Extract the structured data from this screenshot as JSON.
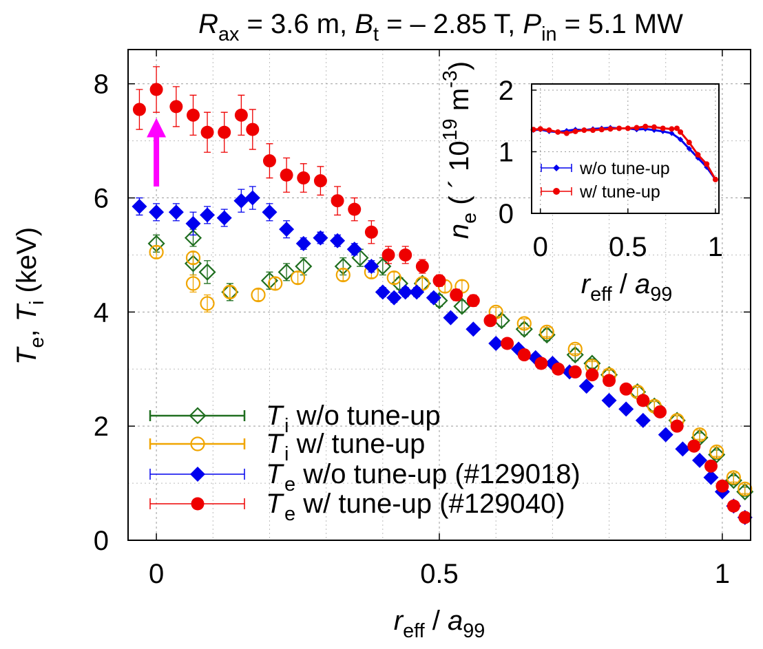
{
  "title": {
    "parts": [
      {
        "text": "R",
        "style": "italic"
      },
      {
        "text": "ax",
        "style": "sub"
      },
      {
        "text": " = 3.6 m, "
      },
      {
        "text": "B",
        "style": "italic"
      },
      {
        "text": "t",
        "style": "sub"
      },
      {
        "text": " = – 2.85 T, "
      },
      {
        "text": "P",
        "style": "italic"
      },
      {
        "text": "in",
        "style": "sub"
      },
      {
        "text": " = 5.1 MW"
      }
    ]
  },
  "main_xlabel": {
    "parts": [
      {
        "text": "r",
        "style": "italic"
      },
      {
        "text": "eff",
        "style": "sub"
      },
      {
        "text": " / "
      },
      {
        "text": "a",
        "style": "italic"
      },
      {
        "text": "99",
        "style": "sub"
      }
    ]
  },
  "main_ylabel": {
    "parts": [
      {
        "text": "T",
        "style": "italic"
      },
      {
        "text": "e",
        "style": "sub"
      },
      {
        "text": ", "
      },
      {
        "text": "T",
        "style": "italic"
      },
      {
        "text": "i",
        "style": "sub"
      },
      {
        "text": " (keV)"
      }
    ]
  },
  "inset_xlabel": {
    "parts": [
      {
        "text": "r",
        "style": "italic"
      },
      {
        "text": "eff",
        "style": "sub"
      },
      {
        "text": " / "
      },
      {
        "text": "a",
        "style": "italic"
      },
      {
        "text": "99",
        "style": "sub"
      }
    ]
  },
  "inset_ylabel": {
    "parts": [
      {
        "text": "n",
        "style": "italic"
      },
      {
        "text": "e",
        "style": "sub"
      },
      {
        "text": "  ( ´ 10"
      },
      {
        "text": "19",
        "style": "sup"
      },
      {
        "text": " m"
      },
      {
        "text": "-3",
        "style": "sup"
      },
      {
        "text": ")"
      }
    ]
  },
  "colors": {
    "ti_wo": "#1f6e1f",
    "ti_w": "#f0a500",
    "te_wo": "#0000ee",
    "te_w": "#ee0000",
    "arrow": "#ff00ff"
  },
  "chart_data": [
    {
      "type": "scatter",
      "xlabel": "r_eff / a_99",
      "ylabel": "T_e, T_i (keV)",
      "xlim": [
        -0.05,
        1.05
      ],
      "ylim": [
        0,
        8.6
      ],
      "xticks": [
        0,
        0.5,
        1
      ],
      "xtick_labels": [
        "0",
        "0.5",
        "1"
      ],
      "yticks": [
        0,
        2,
        4,
        6,
        8
      ],
      "ytick_labels": [
        "0",
        "2",
        "4",
        "6",
        "8"
      ],
      "grid": true,
      "legend_position": "bottom-left",
      "annotation": {
        "type": "arrow",
        "color": "magenta",
        "x": 0,
        "from_y": 6.2,
        "to_y": 7.4
      },
      "series": [
        {
          "name": "T_i w/o tune-up",
          "legend": "i w/o tune-up",
          "marker": "diamond-open",
          "color_key": "ti_wo",
          "x": [
            0.0,
            0.065,
            0.065,
            0.09,
            0.13,
            0.2,
            0.23,
            0.26,
            0.33,
            0.36,
            0.4,
            0.43,
            0.47,
            0.5,
            0.54,
            0.61,
            0.65,
            0.69,
            0.74,
            0.77,
            0.8,
            0.85,
            0.88,
            0.92,
            0.96,
            0.99,
            1.02,
            1.04
          ],
          "y": [
            5.2,
            5.3,
            4.85,
            4.7,
            4.35,
            4.55,
            4.7,
            4.8,
            4.8,
            4.95,
            4.8,
            4.5,
            4.5,
            4.2,
            4.1,
            3.85,
            3.7,
            3.6,
            3.25,
            3.1,
            2.9,
            2.6,
            2.35,
            2.1,
            1.8,
            1.5,
            1.05,
            0.85
          ],
          "err": [
            0.15,
            0.15,
            0.2,
            0.2,
            0.15,
            0.15,
            0.15,
            0.15,
            0.15,
            0.15,
            0.15,
            0.1,
            0.1,
            0.1,
            0.1,
            0.1,
            0.1,
            0.1,
            0.1,
            0.08,
            0.08,
            0.08,
            0.08,
            0.08,
            0.08,
            0.08,
            0.08,
            0.08
          ]
        },
        {
          "name": "T_i w/ tune-up",
          "legend": "i w/ tune-up",
          "marker": "circle-open",
          "color_key": "ti_w",
          "x": [
            0.0,
            0.065,
            0.065,
            0.09,
            0.13,
            0.18,
            0.21,
            0.25,
            0.33,
            0.38,
            0.42,
            0.47,
            0.51,
            0.54,
            0.6,
            0.65,
            0.69,
            0.74,
            0.77,
            0.8,
            0.85,
            0.88,
            0.92,
            0.96,
            0.99,
            1.02,
            1.04
          ],
          "y": [
            5.05,
            4.95,
            4.5,
            4.15,
            4.35,
            4.3,
            4.5,
            4.6,
            4.65,
            4.7,
            4.6,
            4.5,
            4.45,
            4.45,
            4.0,
            3.8,
            3.65,
            3.35,
            3.05,
            2.9,
            2.6,
            2.35,
            2.1,
            1.85,
            1.55,
            1.1,
            0.9
          ],
          "err": [
            0.1,
            0.1,
            0.15,
            0.15,
            0.1,
            0.1,
            0.1,
            0.1,
            0.1,
            0.1,
            0.1,
            0.1,
            0.1,
            0.1,
            0.08,
            0.08,
            0.08,
            0.08,
            0.08,
            0.08,
            0.08,
            0.08,
            0.08,
            0.08,
            0.08,
            0.08,
            0.08
          ]
        },
        {
          "name": "T_e w/o tune-up (#129018)",
          "legend": "e w/o tune-up (#129018)",
          "marker": "diamond-filled",
          "color_key": "te_wo",
          "x": [
            -0.03,
            0.0,
            0.035,
            0.065,
            0.09,
            0.12,
            0.15,
            0.17,
            0.2,
            0.23,
            0.26,
            0.29,
            0.32,
            0.35,
            0.38,
            0.4,
            0.42,
            0.44,
            0.46,
            0.49,
            0.52,
            0.56,
            0.6,
            0.64,
            0.67,
            0.7,
            0.73,
            0.76,
            0.8,
            0.83,
            0.86,
            0.9,
            0.93,
            0.96,
            0.98,
            1.0,
            1.02,
            1.04
          ],
          "y": [
            5.85,
            5.75,
            5.75,
            5.55,
            5.7,
            5.65,
            5.95,
            6.0,
            5.75,
            5.45,
            5.2,
            5.3,
            5.25,
            5.1,
            4.8,
            4.35,
            4.25,
            4.35,
            4.35,
            4.25,
            3.9,
            3.7,
            3.45,
            3.35,
            3.2,
            3.1,
            2.95,
            2.7,
            2.45,
            2.3,
            2.1,
            1.85,
            1.6,
            1.4,
            1.1,
            0.85,
            0.6,
            0.4
          ],
          "err": [
            0.15,
            0.15,
            0.15,
            0.2,
            0.15,
            0.15,
            0.2,
            0.2,
            0.15,
            0.15,
            0.1,
            0.1,
            0.1,
            0.1,
            0.1,
            0.08,
            0.08,
            0.08,
            0.08,
            0.08,
            0.06,
            0.06,
            0.06,
            0.06,
            0.05,
            0.05,
            0.05,
            0.05,
            0.05,
            0.05,
            0.05,
            0.05,
            0.05,
            0.05,
            0.05,
            0.05,
            0.05,
            0.05
          ]
        },
        {
          "name": "T_e w/ tune-up (#129040)",
          "legend": "e w/ tune-up (#129040)",
          "marker": "circle-filled",
          "color_key": "te_w",
          "x": [
            -0.03,
            0.0,
            0.035,
            0.065,
            0.09,
            0.12,
            0.15,
            0.17,
            0.2,
            0.23,
            0.26,
            0.29,
            0.32,
            0.35,
            0.38,
            0.41,
            0.44,
            0.47,
            0.5,
            0.53,
            0.56,
            0.59,
            0.62,
            0.65,
            0.68,
            0.71,
            0.74,
            0.77,
            0.8,
            0.83,
            0.86,
            0.89,
            0.92,
            0.95,
            0.98,
            1.0,
            1.02,
            1.04
          ],
          "y": [
            7.55,
            7.9,
            7.6,
            7.45,
            7.15,
            7.15,
            7.45,
            7.2,
            6.65,
            6.4,
            6.35,
            6.3,
            5.95,
            5.8,
            5.4,
            5.0,
            5.0,
            4.8,
            4.55,
            4.3,
            4.2,
            3.85,
            3.45,
            3.25,
            3.1,
            3.0,
            2.95,
            2.9,
            2.8,
            2.65,
            2.45,
            2.25,
            2.0,
            1.65,
            1.3,
            0.95,
            0.6,
            0.4
          ],
          "err": [
            0.35,
            0.4,
            0.35,
            0.35,
            0.35,
            0.35,
            0.35,
            0.35,
            0.3,
            0.3,
            0.25,
            0.25,
            0.25,
            0.2,
            0.2,
            0.15,
            0.15,
            0.12,
            0.1,
            0.1,
            0.1,
            0.08,
            0.08,
            0.08,
            0.06,
            0.06,
            0.06,
            0.06,
            0.06,
            0.06,
            0.05,
            0.05,
            0.05,
            0.05,
            0.05,
            0.05,
            0.05,
            0.05
          ]
        }
      ]
    },
    {
      "type": "line",
      "xlabel": "r_eff / a_99",
      "ylabel": "n_e ( ´ 10^19 m^-3 )",
      "xlim": [
        -0.05,
        1.02
      ],
      "ylim": [
        0,
        2.1
      ],
      "xticks": [
        0,
        0.5,
        1
      ],
      "xtick_labels": [
        "0",
        "0.5",
        "1"
      ],
      "yticks": [
        0,
        1,
        2
      ],
      "ytick_labels": [
        "0",
        "1",
        "2"
      ],
      "grid": true,
      "legend_position": "bottom-left",
      "series": [
        {
          "name": "w/o tune-up",
          "color_key": "te_wo",
          "marker": "diamond-filled",
          "x": [
            -0.04,
            0.0,
            0.05,
            0.1,
            0.15,
            0.2,
            0.25,
            0.3,
            0.35,
            0.4,
            0.45,
            0.5,
            0.55,
            0.6,
            0.65,
            0.7,
            0.75,
            0.8,
            0.85,
            0.9,
            0.95,
            1.0
          ],
          "y": [
            1.35,
            1.36,
            1.33,
            1.32,
            1.34,
            1.36,
            1.35,
            1.37,
            1.38,
            1.39,
            1.38,
            1.38,
            1.36,
            1.37,
            1.35,
            1.33,
            1.3,
            1.2,
            1.05,
            0.9,
            0.75,
            0.55
          ]
        },
        {
          "name": "w/ tune-up",
          "color_key": "te_w",
          "marker": "circle-filled",
          "x": [
            -0.04,
            0.0,
            0.05,
            0.1,
            0.15,
            0.2,
            0.25,
            0.3,
            0.35,
            0.4,
            0.45,
            0.5,
            0.55,
            0.6,
            0.65,
            0.7,
            0.75,
            0.78,
            0.8,
            0.85,
            0.9,
            0.95,
            1.0
          ],
          "y": [
            1.36,
            1.37,
            1.35,
            1.32,
            1.3,
            1.33,
            1.35,
            1.35,
            1.36,
            1.37,
            1.38,
            1.38,
            1.39,
            1.41,
            1.4,
            1.38,
            1.37,
            1.38,
            1.32,
            1.15,
            0.95,
            0.8,
            0.55
          ]
        }
      ]
    }
  ]
}
